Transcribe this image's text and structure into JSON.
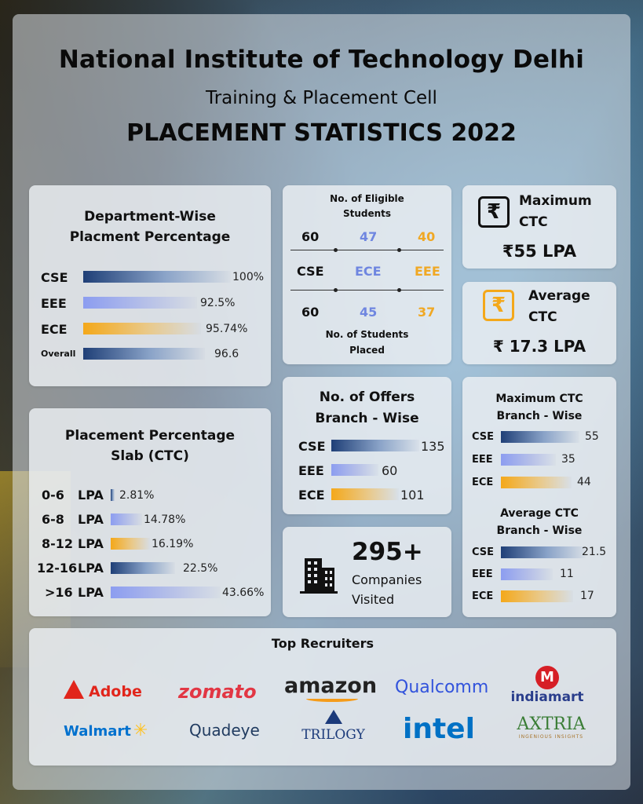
{
  "header": {
    "institute": "National Institute of Technology Delhi",
    "cell": "Training & Placement Cell",
    "title": "PLACEMENT STATISTICS 2022"
  },
  "dept_wise": {
    "title_line1": "Department-Wise",
    "title_line2": "Placment Percentage",
    "rows": [
      {
        "label": "CSE",
        "value": "100%",
        "pct": 100
      },
      {
        "label": "EEE",
        "value": "92.5%",
        "pct": 92.5
      },
      {
        "label": "ECE",
        "value": "95.74%",
        "pct": 95.74
      },
      {
        "label": "Overall",
        "value": "96.6",
        "pct": 96.6
      }
    ]
  },
  "eligible": {
    "title_line1": "No. of Eligible",
    "title_line2": "Students",
    "eligible_values": [
      "60",
      "47",
      "40"
    ],
    "branches": [
      "CSE",
      "ECE",
      "EEE"
    ],
    "placed_values": [
      "60",
      "45",
      "37"
    ],
    "footer_line1": "No. of  Students",
    "footer_line2": "Placed"
  },
  "max_ctc": {
    "label_line1": "Maximum",
    "label_line2": "CTC",
    "value": "₹55 LPA",
    "icon": "rupee-icon"
  },
  "avg_ctc": {
    "label_line1": "Average",
    "label_line2": "CTC",
    "value": "₹ 17.3 LPA",
    "icon": "rupee-icon"
  },
  "slab": {
    "title_line1": "Placement Percentage",
    "title_line2": "Slab (CTC)",
    "rows": [
      {
        "range": "0-6",
        "unit": "LPA",
        "value": "2.81%",
        "pct": 2.81
      },
      {
        "range": "6-8",
        "unit": "LPA",
        "value": "14.78%",
        "pct": 14.78
      },
      {
        "range": "8-12",
        "unit": "LPA",
        "value": "16.19%",
        "pct": 16.19
      },
      {
        "range": "12-16",
        "unit": "LPA",
        "value": "22.5%",
        "pct": 22.5
      },
      {
        "range": ">16",
        "unit": "LPA",
        "value": "43.66%",
        "pct": 43.66
      }
    ]
  },
  "offers": {
    "title_line1": "No. of Offers",
    "title_line2": "Branch - Wise",
    "rows": [
      {
        "label": "CSE",
        "value": "135"
      },
      {
        "label": "EEE",
        "value": "60"
      },
      {
        "label": "ECE",
        "value": "101"
      }
    ]
  },
  "branch_ctc": {
    "max_title_line1": "Maximum CTC",
    "max_title_line2": "Branch - Wise",
    "max_rows": [
      {
        "label": "CSE",
        "value": "55"
      },
      {
        "label": "EEE",
        "value": "35"
      },
      {
        "label": "ECE",
        "value": "44"
      }
    ],
    "avg_title_line1": "Average CTC",
    "avg_title_line2": "Branch - Wise",
    "avg_rows": [
      {
        "label": "CSE",
        "value": "21.5"
      },
      {
        "label": "EEE",
        "value": "11"
      },
      {
        "label": "ECE",
        "value": "17"
      }
    ]
  },
  "companies": {
    "count": "295+",
    "label_line1": "Companies",
    "label_line2": "Visited",
    "icon": "building-icon"
  },
  "recruiters": {
    "title": "Top Recruiters",
    "logos": [
      "Adobe",
      "zomato",
      "amazon",
      "Qualcomm",
      "indiamart",
      "Walmart",
      "Quadeye",
      "TRILOGY",
      "intel",
      "AXTRIA"
    ],
    "axtria_tagline": "INGENIOUS INSIGHTS"
  },
  "colors": {
    "navy": "#1f3f77",
    "light_blue": "#8c9df0",
    "gold": "#f4a81a",
    "ece_text": "#6f86e0",
    "eee_text": "#f0a824"
  }
}
